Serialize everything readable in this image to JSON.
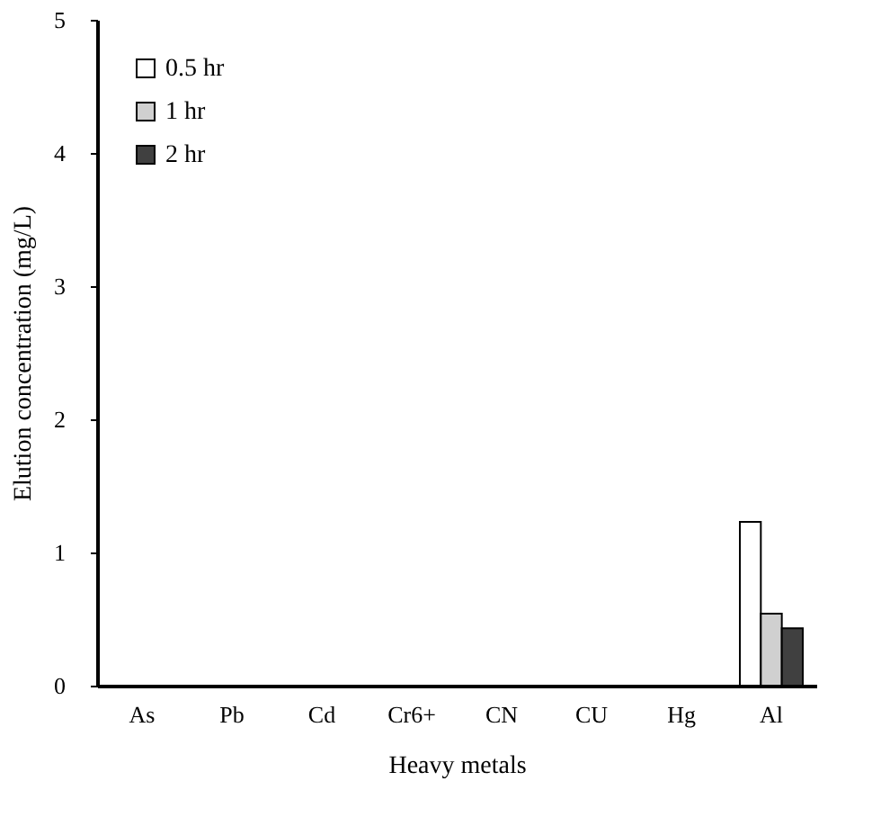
{
  "chart_data": {
    "type": "bar",
    "xlabel": "Heavy metals",
    "ylabel": "Elution concentration (mg/L)",
    "categories": [
      "As",
      "Pb",
      "Cd",
      "Cr6+",
      "CN",
      "CU",
      "Hg",
      "Al"
    ],
    "series": [
      {
        "name": "0.5 hr",
        "color": "#ffffff",
        "values": [
          null,
          null,
          null,
          null,
          null,
          null,
          null,
          1.23
        ]
      },
      {
        "name": "1 hr",
        "color": "#d0d0d0",
        "values": [
          null,
          null,
          null,
          null,
          null,
          null,
          null,
          0.54
        ]
      },
      {
        "name": "2 hr",
        "color": "#404040",
        "values": [
          null,
          null,
          null,
          null,
          null,
          null,
          null,
          0.43
        ]
      }
    ],
    "ylim": [
      0,
      5
    ],
    "yticks": [
      0,
      1,
      2,
      3,
      4,
      5
    ],
    "grid": false,
    "legend": "top left"
  }
}
